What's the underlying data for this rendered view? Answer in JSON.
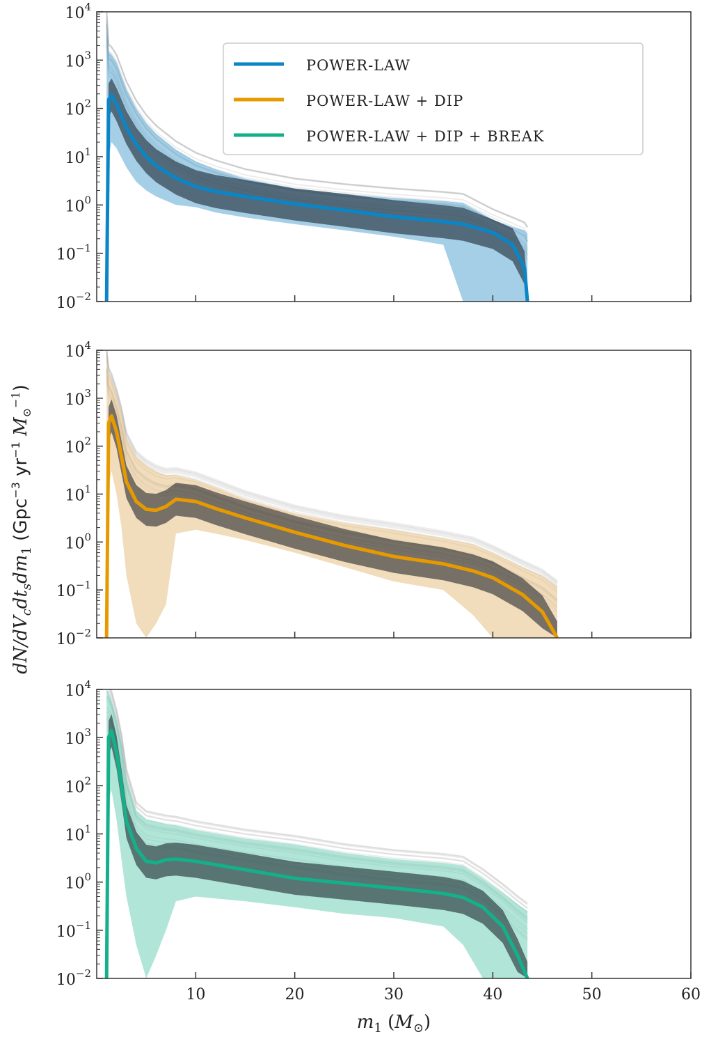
{
  "figure": {
    "ylabel": "dN/dV_c dt_s dm_1 (Gpc^-3 yr^-1 M_⊙^-1)",
    "xlabel": "m_1 (M_⊙)"
  },
  "legend": [
    {
      "label": "POWER-LAW",
      "color": "#0a86c6"
    },
    {
      "label": "POWER-LAW + DIP",
      "color": "#e69a00"
    },
    {
      "label": "POWER-LAW + DIP + BREAK",
      "color": "#14b08a"
    }
  ],
  "chart_data": [
    {
      "type": "line",
      "yscale": "log",
      "xlim": [
        0,
        60
      ],
      "ylim": [
        0.01,
        10000
      ],
      "xticks": [
        10,
        20,
        30,
        40,
        50,
        60
      ],
      "yticks": [
        "10^-2",
        "10^-1",
        "10^0",
        "10^1",
        "10^2",
        "10^3",
        "10^4"
      ],
      "series": [
        {
          "name": "POWER-LAW",
          "color": "#0a86c6",
          "band_color": "#5ba8d3",
          "x": [
            1.0,
            1.2,
            1.5,
            2,
            3,
            4,
            5,
            6,
            8,
            10,
            12,
            15,
            20,
            25,
            30,
            35,
            37,
            40,
            42,
            43.2,
            43.5
          ],
          "y": [
            0.01,
            150,
            190,
            120,
            40,
            18,
            10,
            6.5,
            3.6,
            2.4,
            1.9,
            1.5,
            1.05,
            0.78,
            0.57,
            0.45,
            0.4,
            0.27,
            0.15,
            0.05,
            0.01
          ],
          "band_upper": [
            8000,
            1500,
            1300,
            900,
            250,
            100,
            50,
            30,
            14,
            8,
            5.5,
            3.5,
            2.2,
            1.7,
            1.4,
            1.2,
            1.1,
            0.5,
            0.35,
            0.3,
            0.25
          ],
          "band_lower": [
            0.01,
            10,
            20,
            15,
            6,
            3,
            2,
            1.5,
            1.0,
            0.9,
            0.7,
            0.55,
            0.4,
            0.3,
            0.22,
            0.15,
            0.01,
            0.01,
            0.01,
            0.01,
            0.01
          ]
        }
      ]
    },
    {
      "type": "line",
      "yscale": "log",
      "xlim": [
        0,
        60
      ],
      "ylim": [
        0.01,
        10000
      ],
      "xticks": [
        10,
        20,
        30,
        40,
        50,
        60
      ],
      "yticks": [
        "10^-2",
        "10^-1",
        "10^0",
        "10^1",
        "10^2",
        "10^3",
        "10^4"
      ],
      "series": [
        {
          "name": "POWER-LAW + DIP",
          "color": "#e69a00",
          "band_color": "#e6bf85",
          "x": [
            1.0,
            1.2,
            1.5,
            2,
            2.5,
            3,
            4,
            5,
            6,
            7,
            8,
            10,
            12,
            15,
            20,
            25,
            30,
            35,
            38,
            40,
            43,
            45,
            46.5
          ],
          "y": [
            0.01,
            300,
            430,
            200,
            60,
            18,
            7,
            4.8,
            4.6,
            5.5,
            7.8,
            7.0,
            5.0,
            3.2,
            1.6,
            0.85,
            0.5,
            0.35,
            0.25,
            0.18,
            0.08,
            0.035,
            0.01
          ],
          "band_upper": [
            9000,
            3500,
            2500,
            1200,
            500,
            150,
            60,
            40,
            30,
            25,
            25,
            20,
            14,
            8,
            4,
            2.5,
            1.8,
            1.2,
            0.9,
            0.6,
            0.3,
            0.2,
            0.12
          ],
          "band_lower": [
            0.01,
            15,
            30,
            10,
            2,
            0.2,
            0.02,
            0.01,
            0.02,
            0.05,
            1.5,
            1.8,
            1.5,
            1.1,
            0.6,
            0.3,
            0.15,
            0.1,
            0.03,
            0.01,
            0.01,
            0.01,
            0.01
          ]
        }
      ]
    },
    {
      "type": "line",
      "yscale": "log",
      "xlim": [
        0,
        60
      ],
      "ylim": [
        0.01,
        10000
      ],
      "xticks": [
        10,
        20,
        30,
        40,
        50,
        60
      ],
      "yticks": [
        "10^-2",
        "10^-1",
        "10^0",
        "10^1",
        "10^2",
        "10^3",
        "10^4"
      ],
      "series": [
        {
          "name": "POWER-LAW + DIP + BREAK",
          "color": "#14b08a",
          "band_color": "#6fd0b8",
          "x": [
            1.0,
            1.2,
            1.5,
            2,
            2.5,
            3,
            4,
            5,
            6,
            7,
            8,
            10,
            15,
            20,
            25,
            30,
            35,
            37,
            39,
            41,
            42.5,
            43.5
          ],
          "y": [
            0.01,
            1000,
            1400,
            500,
            100,
            18,
            5,
            2.7,
            2.5,
            2.9,
            3.0,
            2.7,
            1.8,
            1.2,
            0.95,
            0.75,
            0.58,
            0.48,
            0.3,
            0.12,
            0.03,
            0.01
          ],
          "band_upper": [
            10000,
            9000,
            6000,
            2500,
            800,
            150,
            30,
            20,
            18,
            16,
            15,
            12,
            8,
            6,
            4,
            3,
            2.5,
            2.2,
            1.2,
            0.6,
            0.35,
            0.25
          ],
          "band_lower": [
            0.01,
            50,
            80,
            20,
            3,
            0.5,
            0.05,
            0.01,
            0.03,
            0.1,
            0.4,
            0.5,
            0.4,
            0.3,
            0.22,
            0.18,
            0.12,
            0.05,
            0.01,
            0.01,
            0.01,
            0.01
          ]
        }
      ]
    }
  ]
}
